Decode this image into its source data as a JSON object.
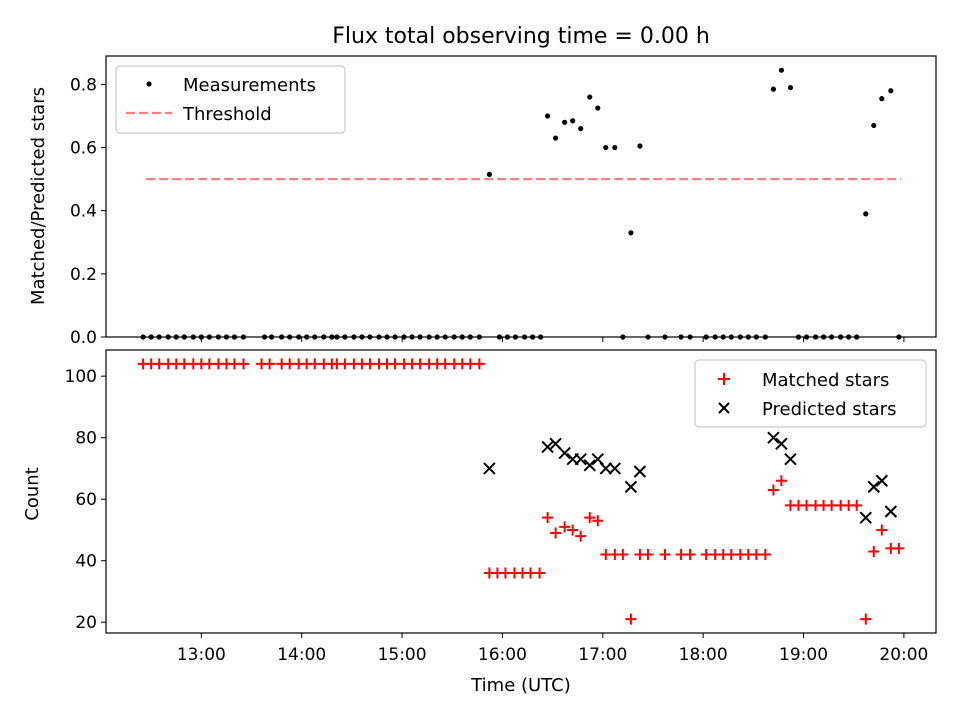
{
  "chart_data": {
    "title": "Flux total observing time = 0.00 h",
    "xlabel": "Time (UTC)",
    "x_unit": "hours UTC",
    "xlim": [
      12.05,
      20.32
    ],
    "xticks": [
      13,
      14,
      15,
      16,
      17,
      18,
      19,
      20
    ],
    "xtick_labels": [
      "13:00",
      "14:00",
      "15:00",
      "16:00",
      "17:00",
      "18:00",
      "19:00",
      "20:00"
    ],
    "panels": [
      {
        "type": "scatter",
        "ylabel": "Matched/Predicted stars",
        "ylim": [
          0,
          0.89
        ],
        "yticks": [
          0.0,
          0.2,
          0.4,
          0.6,
          0.8
        ],
        "ytick_labels": [
          "0.0",
          "0.2",
          "0.4",
          "0.6",
          "0.8"
        ],
        "legend_position": "top-left",
        "series": [
          {
            "name": "Measurements",
            "marker": "dot",
            "color": "#000000",
            "points": [
              [
                12.42,
                0
              ],
              [
                12.5,
                0
              ],
              [
                12.58,
                0
              ],
              [
                12.67,
                0
              ],
              [
                12.75,
                0
              ],
              [
                12.83,
                0
              ],
              [
                12.92,
                0
              ],
              [
                13.0,
                0
              ],
              [
                13.08,
                0
              ],
              [
                13.17,
                0
              ],
              [
                13.25,
                0
              ],
              [
                13.33,
                0
              ],
              [
                13.42,
                0
              ],
              [
                13.63,
                0
              ],
              [
                13.7,
                0
              ],
              [
                13.8,
                0
              ],
              [
                13.88,
                0
              ],
              [
                13.97,
                0
              ],
              [
                14.05,
                0
              ],
              [
                14.13,
                0
              ],
              [
                14.22,
                0
              ],
              [
                14.3,
                0
              ],
              [
                14.35,
                0
              ],
              [
                14.43,
                0
              ],
              [
                14.52,
                0
              ],
              [
                14.6,
                0
              ],
              [
                14.68,
                0
              ],
              [
                14.77,
                0
              ],
              [
                14.85,
                0
              ],
              [
                14.93,
                0
              ],
              [
                15.02,
                0
              ],
              [
                15.1,
                0
              ],
              [
                15.18,
                0
              ],
              [
                15.27,
                0
              ],
              [
                15.35,
                0
              ],
              [
                15.43,
                0
              ],
              [
                15.52,
                0
              ],
              [
                15.6,
                0
              ],
              [
                15.68,
                0
              ],
              [
                15.77,
                0
              ],
              [
                15.87,
                0.515
              ],
              [
                15.97,
                0
              ],
              [
                16.05,
                0
              ],
              [
                16.13,
                0
              ],
              [
                16.22,
                0
              ],
              [
                16.3,
                0
              ],
              [
                16.38,
                0
              ],
              [
                16.45,
                0.7
              ],
              [
                16.53,
                0.63
              ],
              [
                16.62,
                0.68
              ],
              [
                16.7,
                0.685
              ],
              [
                16.78,
                0.66
              ],
              [
                16.87,
                0.76
              ],
              [
                16.95,
                0.725
              ],
              [
                17.03,
                0.6
              ],
              [
                17.12,
                0.6
              ],
              [
                17.2,
                0
              ],
              [
                17.28,
                0.33
              ],
              [
                17.37,
                0.605
              ],
              [
                17.45,
                0
              ],
              [
                17.62,
                0
              ],
              [
                17.78,
                0
              ],
              [
                17.87,
                0
              ],
              [
                18.03,
                0
              ],
              [
                18.12,
                0
              ],
              [
                18.2,
                0
              ],
              [
                18.28,
                0
              ],
              [
                18.37,
                0
              ],
              [
                18.45,
                0
              ],
              [
                18.53,
                0
              ],
              [
                18.62,
                0
              ],
              [
                18.7,
                0.785
              ],
              [
                18.78,
                0.845
              ],
              [
                18.87,
                0.79
              ],
              [
                18.95,
                0
              ],
              [
                19.03,
                0
              ],
              [
                19.12,
                0
              ],
              [
                19.2,
                0
              ],
              [
                19.28,
                0
              ],
              [
                19.37,
                0
              ],
              [
                19.45,
                0
              ],
              [
                19.53,
                0
              ],
              [
                19.62,
                0.39
              ],
              [
                19.7,
                0.67
              ],
              [
                19.78,
                0.755
              ],
              [
                19.87,
                0.78
              ],
              [
                19.95,
                0
              ]
            ]
          },
          {
            "name": "Threshold",
            "marker": "dashed-line",
            "color": "#ff7f7f",
            "x": [
              12.45,
              19.97
            ],
            "y": [
              0.5,
              0.5
            ]
          }
        ]
      },
      {
        "type": "scatter",
        "ylabel": "Count",
        "ylim": [
          16.5,
          108.5
        ],
        "yticks": [
          20,
          40,
          60,
          80,
          100
        ],
        "ytick_labels": [
          "20",
          "40",
          "60",
          "80",
          "100"
        ],
        "legend_position": "top-right",
        "series": [
          {
            "name": "Matched stars",
            "marker": "plus",
            "color": "#ff0000",
            "points": [
              [
                12.42,
                104
              ],
              [
                12.5,
                104
              ],
              [
                12.58,
                104
              ],
              [
                12.67,
                104
              ],
              [
                12.75,
                104
              ],
              [
                12.83,
                104
              ],
              [
                12.92,
                104
              ],
              [
                13.0,
                104
              ],
              [
                13.08,
                104
              ],
              [
                13.17,
                104
              ],
              [
                13.25,
                104
              ],
              [
                13.33,
                104
              ],
              [
                13.42,
                104
              ],
              [
                13.6,
                104
              ],
              [
                13.68,
                104
              ],
              [
                13.8,
                104
              ],
              [
                13.88,
                104
              ],
              [
                13.97,
                104
              ],
              [
                14.05,
                104
              ],
              [
                14.13,
                104
              ],
              [
                14.22,
                104
              ],
              [
                14.3,
                104
              ],
              [
                14.35,
                104
              ],
              [
                14.43,
                104
              ],
              [
                14.52,
                104
              ],
              [
                14.6,
                104
              ],
              [
                14.68,
                104
              ],
              [
                14.77,
                104
              ],
              [
                14.85,
                104
              ],
              [
                14.93,
                104
              ],
              [
                15.02,
                104
              ],
              [
                15.1,
                104
              ],
              [
                15.18,
                104
              ],
              [
                15.27,
                104
              ],
              [
                15.35,
                104
              ],
              [
                15.43,
                104
              ],
              [
                15.52,
                104
              ],
              [
                15.6,
                104
              ],
              [
                15.68,
                104
              ],
              [
                15.77,
                104
              ],
              [
                15.87,
                36
              ],
              [
                15.95,
                36
              ],
              [
                16.03,
                36
              ],
              [
                16.12,
                36
              ],
              [
                16.2,
                36
              ],
              [
                16.28,
                36
              ],
              [
                16.37,
                36
              ],
              [
                16.45,
                54
              ],
              [
                16.53,
                49
              ],
              [
                16.62,
                51
              ],
              [
                16.7,
                50
              ],
              [
                16.78,
                48
              ],
              [
                16.87,
                54
              ],
              [
                16.95,
                53
              ],
              [
                17.03,
                42
              ],
              [
                17.12,
                42
              ],
              [
                17.2,
                42
              ],
              [
                17.28,
                21
              ],
              [
                17.37,
                42
              ],
              [
                17.45,
                42
              ],
              [
                17.62,
                42
              ],
              [
                17.78,
                42
              ],
              [
                17.87,
                42
              ],
              [
                18.03,
                42
              ],
              [
                18.12,
                42
              ],
              [
                18.2,
                42
              ],
              [
                18.28,
                42
              ],
              [
                18.37,
                42
              ],
              [
                18.45,
                42
              ],
              [
                18.53,
                42
              ],
              [
                18.62,
                42
              ],
              [
                18.7,
                63
              ],
              [
                18.78,
                66
              ],
              [
                18.87,
                58
              ],
              [
                18.95,
                58
              ],
              [
                19.03,
                58
              ],
              [
                19.12,
                58
              ],
              [
                19.2,
                58
              ],
              [
                19.28,
                58
              ],
              [
                19.37,
                58
              ],
              [
                19.45,
                58
              ],
              [
                19.53,
                58
              ],
              [
                19.62,
                21
              ],
              [
                19.7,
                43
              ],
              [
                19.78,
                50
              ],
              [
                19.87,
                44
              ],
              [
                19.95,
                44
              ]
            ]
          },
          {
            "name": "Predicted stars",
            "marker": "x",
            "color": "#000000",
            "points": [
              [
                15.87,
                70
              ],
              [
                16.45,
                77
              ],
              [
                16.53,
                78
              ],
              [
                16.62,
                75
              ],
              [
                16.7,
                73
              ],
              [
                16.78,
                73
              ],
              [
                16.87,
                71
              ],
              [
                16.95,
                73
              ],
              [
                17.03,
                70
              ],
              [
                17.12,
                70
              ],
              [
                17.28,
                64
              ],
              [
                17.37,
                69
              ],
              [
                18.7,
                80
              ],
              [
                18.78,
                78
              ],
              [
                18.87,
                73
              ],
              [
                19.62,
                54
              ],
              [
                19.7,
                64
              ],
              [
                19.78,
                66
              ],
              [
                19.87,
                56
              ]
            ]
          }
        ]
      }
    ]
  }
}
